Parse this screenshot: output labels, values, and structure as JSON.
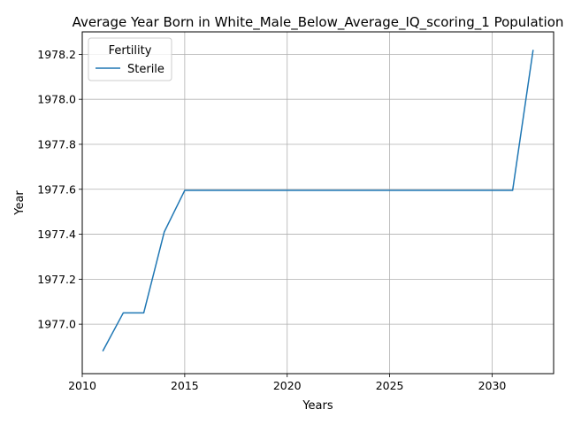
{
  "chart_data": {
    "type": "line",
    "title": "Average Year Born in White_Male_Below_Average_IQ_scoring_1 Population",
    "xlabel": "Years",
    "ylabel": "Year",
    "xlim": [
      2010,
      2033
    ],
    "ylim": [
      1976.78,
      1978.3
    ],
    "xticks": [
      2010,
      2015,
      2020,
      2025,
      2030
    ],
    "yticks": [
      1977.0,
      1977.2,
      1977.4,
      1977.6,
      1977.8,
      1978.0,
      1978.2
    ],
    "ytick_labels": [
      "1977.0",
      "1977.2",
      "1977.4",
      "1977.6",
      "1977.8",
      "1978.0",
      "1978.2"
    ],
    "grid": true,
    "legend": {
      "title": "Fertility",
      "placement": "top-left"
    },
    "series": [
      {
        "name": "Sterile",
        "color": "#1f77b4",
        "x": [
          2011,
          2012,
          2013,
          2014,
          2015,
          2016,
          2017,
          2018,
          2019,
          2020,
          2021,
          2022,
          2023,
          2024,
          2025,
          2026,
          2027,
          2028,
          2029,
          2030,
          2031,
          2032
        ],
        "y": [
          1976.88,
          1977.05,
          1977.05,
          1977.41,
          1977.595,
          1977.595,
          1977.595,
          1977.595,
          1977.595,
          1977.595,
          1977.595,
          1977.595,
          1977.595,
          1977.595,
          1977.595,
          1977.595,
          1977.595,
          1977.595,
          1977.595,
          1977.595,
          1977.595,
          1978.22
        ]
      }
    ]
  }
}
